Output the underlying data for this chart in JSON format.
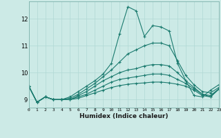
{
  "xlabel": "Humidex (Indice chaleur)",
  "bg_color": "#cceae6",
  "line_color": "#1a7a6e",
  "grid_color": "#b0d8d4",
  "xlim": [
    0,
    23
  ],
  "ylim": [
    8.7,
    12.65
  ],
  "yticks": [
    9,
    10,
    11,
    12
  ],
  "xticks": [
    0,
    1,
    2,
    3,
    4,
    5,
    6,
    7,
    8,
    9,
    10,
    11,
    12,
    13,
    14,
    15,
    16,
    17,
    18,
    19,
    20,
    21,
    22,
    23
  ],
  "lines": [
    [
      9.5,
      8.9,
      9.1,
      9.0,
      9.0,
      9.1,
      9.3,
      9.5,
      9.7,
      9.95,
      10.35,
      11.45,
      12.45,
      12.3,
      11.35,
      11.75,
      11.7,
      11.55,
      10.35,
      9.7,
      9.15,
      9.1,
      9.35,
      9.55
    ],
    [
      9.5,
      8.9,
      9.1,
      9.0,
      9.0,
      9.05,
      9.2,
      9.4,
      9.6,
      9.85,
      10.1,
      10.4,
      10.7,
      10.85,
      11.0,
      11.1,
      11.1,
      11.0,
      10.45,
      9.9,
      9.55,
      9.3,
      9.25,
      9.45
    ],
    [
      9.5,
      8.9,
      9.1,
      9.0,
      9.0,
      9.0,
      9.15,
      9.3,
      9.5,
      9.7,
      9.85,
      10.0,
      10.1,
      10.15,
      10.25,
      10.3,
      10.3,
      10.25,
      10.0,
      9.7,
      9.45,
      9.2,
      9.15,
      9.4
    ],
    [
      9.5,
      8.9,
      9.1,
      9.0,
      9.0,
      9.0,
      9.1,
      9.2,
      9.35,
      9.5,
      9.65,
      9.75,
      9.8,
      9.85,
      9.9,
      9.95,
      9.95,
      9.9,
      9.75,
      9.6,
      9.4,
      9.2,
      9.1,
      9.4
    ],
    [
      9.5,
      8.9,
      9.1,
      9.0,
      9.0,
      9.0,
      9.05,
      9.15,
      9.25,
      9.35,
      9.45,
      9.52,
      9.57,
      9.6,
      9.62,
      9.65,
      9.65,
      9.62,
      9.57,
      9.5,
      9.35,
      9.15,
      9.1,
      9.38
    ]
  ]
}
